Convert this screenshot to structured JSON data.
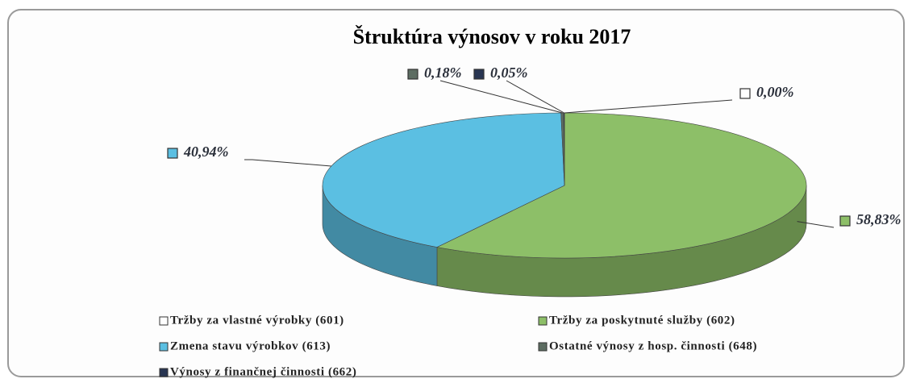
{
  "chart_data": {
    "type": "pie",
    "title": "Štruktúra výnosov v roku 2017",
    "categories": [
      "Tržby za vlastné výrobky (601)",
      "Tržby za poskytnuté služby (602)",
      "Zmena stavu výrobkov (613)",
      "Ostatné výnosy z hosp. činnosti (648)",
      "Výnosy z finančnej činnosti (662)"
    ],
    "values": [
      0.0,
      58.83,
      40.94,
      0.18,
      0.05
    ],
    "value_labels": [
      "0,00%",
      "58,83%",
      "40,94%",
      "0,18%",
      "0,05%"
    ],
    "colors": [
      "#ffffff",
      "#8dbf68",
      "#5bbfe2",
      "#5d6d62",
      "#283552"
    ]
  }
}
